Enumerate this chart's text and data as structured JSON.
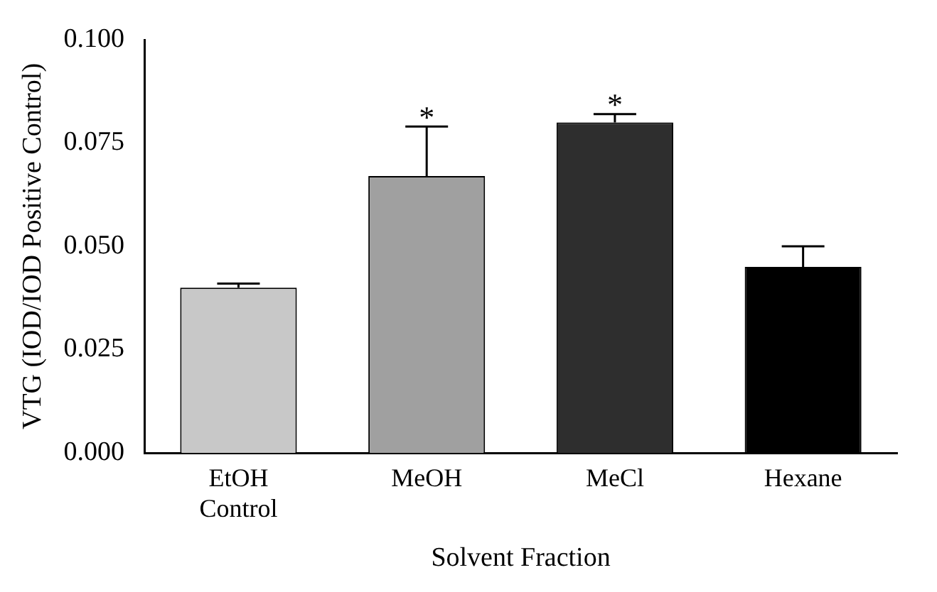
{
  "chart_data": {
    "type": "bar",
    "xlabel": "Solvent Fraction",
    "ylabel": "VTG (IOD/IOD Positive Control)",
    "categories": [
      "EtOH\nControl",
      "MeOH",
      "MeCl",
      "Hexane"
    ],
    "values": [
      0.04,
      0.067,
      0.08,
      0.045
    ],
    "colors": [
      "#c8c8c8",
      "#a0a0a0",
      "#2e2e2e",
      "#000000"
    ],
    "errors": [
      0.001,
      0.012,
      0.002,
      0.005
    ],
    "ylim": [
      0,
      0.1
    ],
    "yticks": [
      {
        "value": 0,
        "label": "0.000"
      },
      {
        "value": 0.025,
        "label": "0.025"
      },
      {
        "value": 0.05,
        "label": "0.050"
      },
      {
        "value": 0.075,
        "label": "0.075"
      },
      {
        "value": 0.1,
        "label": "0.100"
      }
    ],
    "annotations": [
      {
        "text": "*",
        "x": "MeOH",
        "y": 0.079
      },
      {
        "text": "*",
        "x": "MeCl",
        "y": 0.082
      }
    ],
    "grid": false,
    "legend": false
  }
}
